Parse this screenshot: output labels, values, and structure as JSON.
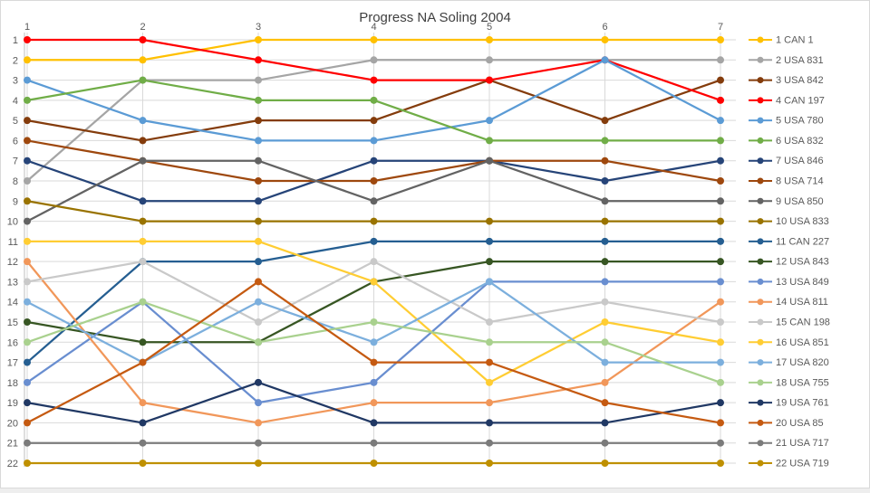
{
  "chart_data": {
    "type": "line",
    "title": "Progress NA Soling 2004",
    "xlabel": "",
    "ylabel": "",
    "x_axis": {
      "position": "top",
      "labels": [
        "1",
        "2",
        "3",
        "4",
        "5",
        "6",
        "7"
      ]
    },
    "y_axis": {
      "inverted": true,
      "min": 1,
      "max": 22,
      "labels": [
        "1",
        "2",
        "3",
        "4",
        "5",
        "6",
        "7",
        "8",
        "9",
        "10",
        "11",
        "12",
        "13",
        "14",
        "15",
        "16",
        "17",
        "18",
        "19",
        "20",
        "21",
        "22"
      ]
    },
    "grid": true,
    "legend": {
      "position": "right"
    },
    "series": [
      {
        "label": "1 CAN 1",
        "color": "#FFC000",
        "values": [
          2,
          2,
          1,
          1,
          1,
          1,
          1
        ]
      },
      {
        "label": "2 USA 831",
        "color": "#A5A5A5",
        "values": [
          8,
          3,
          3,
          2,
          2,
          2,
          2
        ]
      },
      {
        "label": "3 USA 842",
        "color": "#843C0C",
        "values": [
          5,
          6,
          5,
          5,
          3,
          5,
          3
        ]
      },
      {
        "label": "4 CAN 197",
        "color": "#FF0000",
        "values": [
          1,
          1,
          2,
          3,
          3,
          2,
          4
        ]
      },
      {
        "label": "5 USA 780",
        "color": "#5B9BD5",
        "values": [
          3,
          5,
          6,
          6,
          5,
          2,
          5
        ]
      },
      {
        "label": "6 USA 832",
        "color": "#70AD47",
        "values": [
          4,
          3,
          4,
          4,
          6,
          6,
          6
        ]
      },
      {
        "label": "7 USA 846",
        "color": "#264478",
        "values": [
          7,
          9,
          9,
          7,
          7,
          8,
          7
        ]
      },
      {
        "label": "8 USA 714",
        "color": "#9E480E",
        "values": [
          6,
          7,
          8,
          8,
          7,
          7,
          8
        ]
      },
      {
        "label": "9 USA 850",
        "color": "#636363",
        "values": [
          10,
          7,
          7,
          9,
          7,
          9,
          9
        ]
      },
      {
        "label": "10 USA 833",
        "color": "#997300",
        "values": [
          9,
          10,
          10,
          10,
          10,
          10,
          10
        ]
      },
      {
        "label": "11 CAN 227",
        "color": "#255E91",
        "values": [
          17,
          12,
          12,
          11,
          11,
          11,
          11
        ]
      },
      {
        "label": "12 USA 843",
        "color": "#375623",
        "values": [
          15,
          16,
          16,
          13,
          12,
          12,
          12
        ]
      },
      {
        "label": "13 USA 849",
        "color": "#698ED0",
        "values": [
          18,
          14,
          19,
          18,
          13,
          13,
          13
        ]
      },
      {
        "label": "14 USA 811",
        "color": "#F1975A",
        "values": [
          12,
          19,
          20,
          19,
          19,
          18,
          14
        ]
      },
      {
        "label": "15 CAN 198",
        "color": "#C9C9C9",
        "values": [
          13,
          12,
          15,
          12,
          15,
          14,
          15
        ]
      },
      {
        "label": "16 USA 851",
        "color": "#FFCD33",
        "values": [
          11,
          11,
          11,
          13,
          18,
          15,
          16
        ]
      },
      {
        "label": "17 USA 820",
        "color": "#7CAFDD",
        "values": [
          14,
          17,
          14,
          16,
          13,
          17,
          17
        ]
      },
      {
        "label": "18 USA 755",
        "color": "#A9D18E",
        "values": [
          16,
          14,
          16,
          15,
          16,
          16,
          18
        ]
      },
      {
        "label": "19 USA 761",
        "color": "#203864",
        "values": [
          19,
          20,
          18,
          20,
          20,
          20,
          19
        ]
      },
      {
        "label": "20 USA 85",
        "color": "#C55A11",
        "values": [
          20,
          17,
          13,
          17,
          17,
          19,
          20
        ]
      },
      {
        "label": "21 USA 717",
        "color": "#7B7B7B",
        "values": [
          21,
          21,
          21,
          21,
          21,
          21,
          21
        ]
      },
      {
        "label": "22 USA 719",
        "color": "#BF9000",
        "values": [
          22,
          22,
          22,
          22,
          22,
          22,
          22
        ]
      }
    ]
  },
  "colors": {
    "background": "#FFFFFF",
    "border": "#D9D9D9",
    "grid": "#D9D9D9",
    "axis": "#BFBFBF",
    "tick_label": "#595959",
    "title": "#404040"
  }
}
